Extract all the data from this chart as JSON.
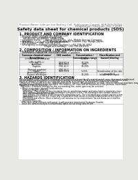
{
  "bg_color": "#e8e8e4",
  "page_bg": "#ffffff",
  "header_left": "Product Name: Lithium Ion Battery Cell",
  "header_right_line1": "Publication Control: SER-049-00010",
  "header_right_line2": "Established / Revision: Dec.7.2009",
  "main_title": "Safety data sheet for chemical products (SDS)",
  "section1_title": "1. PRODUCT AND COMPANY IDENTIFICATION",
  "section1_lines": [
    " • Product name: Lithium Ion Battery Cell",
    " • Product code: Cylindrical-type cell",
    "     SIF-B6500, SIF-B8500, SIF-B6500A",
    " • Company name:     Sanyo Electric Co., Ltd., Mobile Energy Company",
    " • Address:              2001, Kamionakamachi, Sumoto-City, Hyogo, Japan",
    " • Telephone number:    +81-799-26-4111",
    " • Fax number:   +81-799-26-4120",
    " • Emergency telephone number (daytime): +81-799-26-3662",
    "                                (Night and holiday): +81-799-26-4101"
  ],
  "section2_title": "2. COMPOSITION / INFORMATION ON INGREDIENTS",
  "section2_sub1": " • Substance or preparation: Preparation",
  "section2_sub2": " • Information about the chemical nature of product:",
  "table_col_names": [
    "Common chemical name/\nBrand Name",
    "CAS number",
    "Concentration /\nConcentration range",
    "Classification and\nhazard labeling"
  ],
  "table_rows": [
    [
      "Lithium cobalt tantalate\n(LiMn₂Co(PO₄)₂)",
      "-",
      "30-60%",
      "-"
    ],
    [
      "Iron",
      "2439-80-8",
      "10-20%",
      "-"
    ],
    [
      "Aluminum",
      "7429-90-5",
      "2-5%",
      "-"
    ],
    [
      "Graphite\n(Natural graphite)\n(Artificial graphite)",
      "7782-42-5\n7782-44-2",
      "10-20%",
      "-"
    ],
    [
      "Copper",
      "7440-50-8",
      "5-15%",
      "Sensitisation of the skin\ngroup No.2"
    ],
    [
      "Organic electrolyte",
      "-",
      "10-20%",
      "Inflammable liquid"
    ]
  ],
  "section3_title": "3. HAZARDS IDENTIFICATION",
  "section3_lines": [
    "For the battery cell, chemical materials are stored in a hermetically sealed metal case, designed to withstand",
    "temperatures and pressure-concentration during normal use. As a result, during normal use, there is no",
    "physical danger of ignition or explosion and there is no danger of hazardous materials leakage.",
    "  However, if exposed to a fire, added mechanical shocks, decomposition, or heat, electro chemical reactions may cause",
    "the gas release valve to be operated. The battery cell case will be breached of fire-protons, hazardous",
    "materials may be released.",
    "  Moreover, if heated strongly by the surrounding fire, some gas may be emitted."
  ],
  "section3_bullet1": " • Most important hazard and effects:",
  "section3_human": "    Human health effects:",
  "section3_human_lines": [
    "      Inhalation: The release of the electrolyte has an anesthesia action and stimulates a respiratory tract.",
    "      Skin contact: The release of the electrolyte stimulates a skin. The electrolyte skin contact causes a",
    "      sore and stimulation on the skin.",
    "      Eye contact: The release of the electrolyte stimulates eyes. The electrolyte eye contact causes a sore",
    "      and stimulation on the eye. Especially, a substance that causes a strong inflammation of the eyes is",
    "      contained.",
    "      Environmental effects: Since a battery cell remains in the environment, do not throw out it into the",
    "      environment."
  ],
  "section3_specific": " • Specific hazards:",
  "section3_specific_lines": [
    "    If the electrolyte contacts with water, it will generate detrimental hydrogen fluoride.",
    "    Since the used electrolyte is inflammable liquid, do not bring close to fire."
  ],
  "fsh": 2.8,
  "fst": 4.2,
  "fss": 3.5,
  "fsb": 2.4,
  "fstab": 2.2
}
